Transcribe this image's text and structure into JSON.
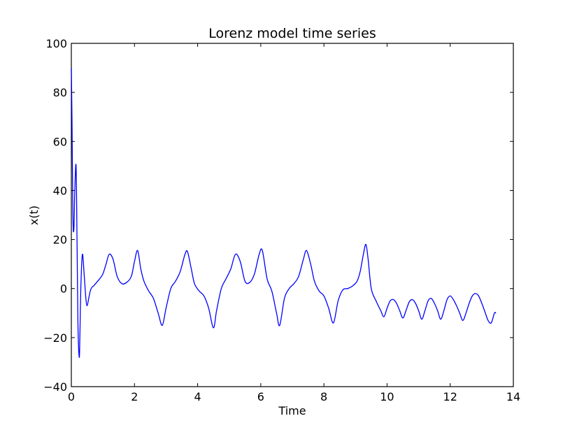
{
  "chart_data": {
    "type": "line",
    "title": "Lorenz model time series",
    "xlabel": "Time",
    "ylabel": "x(t)",
    "xlim": [
      0,
      14
    ],
    "ylim": [
      -40,
      100
    ],
    "xticks": [
      0,
      2,
      4,
      6,
      8,
      10,
      12,
      14
    ],
    "yticks": [
      -40,
      -20,
      0,
      20,
      40,
      60,
      80,
      100
    ],
    "xtick_labels": [
      "0",
      "2",
      "4",
      "6",
      "8",
      "10",
      "12",
      "14"
    ],
    "ytick_labels": [
      "−40",
      "−20",
      "0",
      "20",
      "40",
      "60",
      "80",
      "100"
    ],
    "grid": false,
    "legend": "none",
    "series": [
      {
        "color": "#0000ff",
        "x": [
          0.0,
          0.02,
          0.05,
          0.08,
          0.11,
          0.15,
          0.18,
          0.21,
          0.25,
          0.27,
          0.3,
          0.35,
          0.41,
          0.46,
          0.5,
          0.55,
          0.6,
          0.65,
          0.7,
          0.8,
          0.9,
          1.0,
          1.1,
          1.2,
          1.32,
          1.45,
          1.6,
          1.75,
          1.9,
          2.0,
          2.1,
          2.2,
          2.3,
          2.45,
          2.6,
          2.75,
          2.88,
          3.0,
          3.15,
          3.3,
          3.45,
          3.6,
          3.68,
          3.8,
          3.9,
          4.05,
          4.2,
          4.35,
          4.5,
          4.6,
          4.75,
          4.9,
          5.05,
          5.2,
          5.35,
          5.5,
          5.65,
          5.8,
          5.95,
          6.05,
          6.2,
          6.35,
          6.5,
          6.6,
          6.75,
          6.9,
          7.05,
          7.2,
          7.35,
          7.45,
          7.58,
          7.7,
          7.85,
          8.0,
          8.15,
          8.3,
          8.45,
          8.6,
          8.75,
          8.9,
          9.05,
          9.15,
          9.25,
          9.33,
          9.4,
          9.5,
          9.65,
          9.8,
          9.9,
          10.0,
          10.1,
          10.2,
          10.3,
          10.4,
          10.5,
          10.6,
          10.7,
          10.8,
          10.9,
          11.0,
          11.1,
          11.2,
          11.3,
          11.4,
          11.5,
          11.6,
          11.7,
          11.8,
          11.9,
          12.0,
          12.1,
          12.2,
          12.3,
          12.4,
          12.5,
          12.6,
          12.7,
          12.8,
          12.9,
          13.0,
          13.1,
          13.2,
          13.3,
          13.4,
          13.45
        ],
        "y": [
          90.0,
          70.0,
          30.0,
          24.0,
          40.0,
          50.0,
          20.0,
          -15.0,
          -28.0,
          -20.0,
          0.0,
          14.0,
          5.0,
          -4.0,
          -7.0,
          -4.0,
          -1.0,
          0.5,
          1.0,
          2.5,
          4.0,
          6.0,
          10.0,
          14.0,
          12.0,
          5.0,
          2.0,
          2.5,
          5.0,
          11.0,
          15.5,
          8.0,
          3.0,
          -1.0,
          -4.0,
          -10.0,
          -15.0,
          -8.0,
          0.0,
          3.0,
          7.0,
          14.0,
          15.0,
          8.0,
          2.0,
          -1.0,
          -3.0,
          -8.0,
          -16.0,
          -9.0,
          0.0,
          4.0,
          8.0,
          14.0,
          11.0,
          3.0,
          2.5,
          6.0,
          14.0,
          15.5,
          4.0,
          -1.0,
          -10.0,
          -15.0,
          -4.0,
          0.0,
          2.0,
          5.0,
          12.0,
          15.5,
          10.0,
          3.0,
          -1.0,
          -3.0,
          -8.0,
          -14.0,
          -5.0,
          -0.5,
          0.0,
          1.0,
          3.0,
          7.0,
          14.0,
          18.0,
          12.0,
          0.0,
          -5.0,
          -9.0,
          -11.5,
          -8.0,
          -5.0,
          -4.5,
          -6.0,
          -9.0,
          -12.0,
          -9.0,
          -5.5,
          -4.5,
          -6.0,
          -9.0,
          -12.5,
          -9.0,
          -5.0,
          -4.0,
          -6.0,
          -9.0,
          -12.5,
          -9.0,
          -4.5,
          -3.0,
          -4.5,
          -7.0,
          -10.0,
          -13.0,
          -10.0,
          -6.0,
          -3.0,
          -2.0,
          -3.0,
          -6.0,
          -9.5,
          -13.0,
          -14.0,
          -10.0,
          -10.0
        ]
      }
    ]
  }
}
